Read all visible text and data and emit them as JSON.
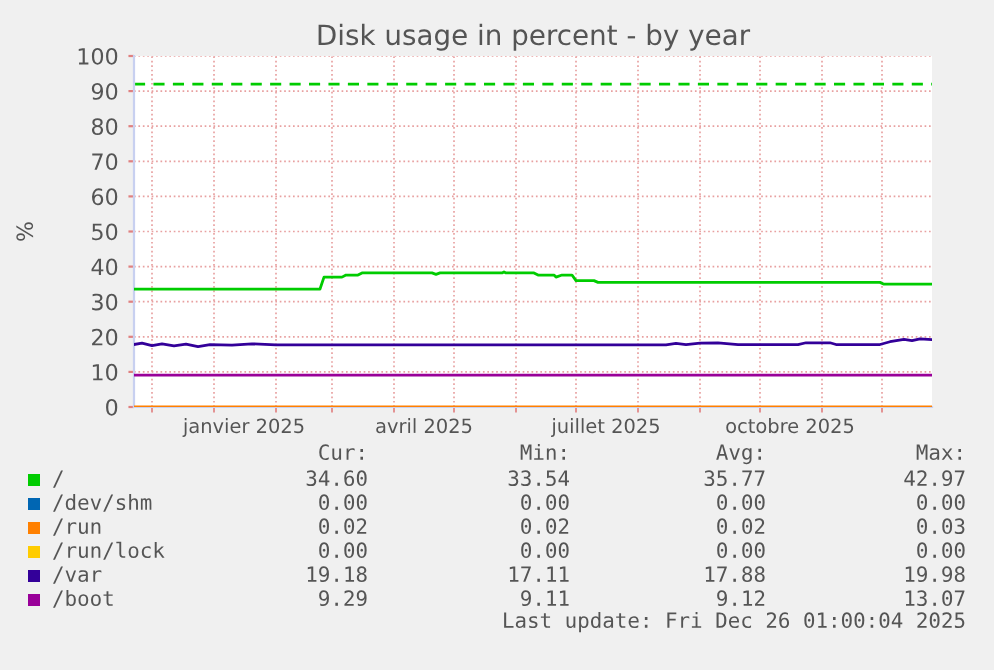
{
  "chart_data": {
    "type": "line",
    "title": "Disk usage in percent - by year",
    "ylabel": "%",
    "xlim": [
      "2024-11-22",
      "2025-12-26"
    ],
    "xticks": [
      {
        "value": "2024-12-01",
        "label": null
      },
      {
        "value": "2025-01-01",
        "label": null
      },
      {
        "value": "2025-01-16",
        "label": "janvier 2025"
      },
      {
        "value": "2025-02-01",
        "label": null
      },
      {
        "value": "2025-03-01",
        "label": null
      },
      {
        "value": "2025-04-01",
        "label": null
      },
      {
        "value": "2025-04-16",
        "label": "avril 2025"
      },
      {
        "value": "2025-05-01",
        "label": null
      },
      {
        "value": "2025-06-01",
        "label": null
      },
      {
        "value": "2025-07-01",
        "label": null
      },
      {
        "value": "2025-07-16",
        "label": "juillet 2025"
      },
      {
        "value": "2025-08-01",
        "label": null
      },
      {
        "value": "2025-09-01",
        "label": null
      },
      {
        "value": "2025-10-01",
        "label": null
      },
      {
        "value": "2025-10-16",
        "label": "octobre 2025"
      },
      {
        "value": "2025-11-01",
        "label": null
      },
      {
        "value": "2025-12-01",
        "label": null
      }
    ],
    "ylim": [
      0,
      100
    ],
    "yticks": [
      0,
      10,
      20,
      30,
      40,
      50,
      60,
      70,
      80,
      90,
      100
    ],
    "grid": true,
    "legend": "bottom",
    "marker": "none",
    "line_style": "solid",
    "series": [
      {
        "name": "/",
        "color": "#00cc00",
        "x": [
          "2024-11-22",
          "2025-02-23",
          "2025-02-25",
          "2025-03-06",
          "2025-03-08",
          "2025-03-14",
          "2025-03-16",
          "2025-04-20",
          "2025-04-22",
          "2025-04-24",
          "2025-05-25",
          "2025-05-26",
          "2025-05-27",
          "2025-06-10",
          "2025-06-12",
          "2025-06-20",
          "2025-06-21",
          "2025-06-24",
          "2025-06-29",
          "2025-07-01",
          "2025-07-10",
          "2025-07-12",
          "2025-11-30",
          "2025-12-02",
          "2025-12-26"
        ],
        "values": [
          33.6,
          33.6,
          37.0,
          37.0,
          37.6,
          37.6,
          38.2,
          38.2,
          37.8,
          38.2,
          38.2,
          38.5,
          38.2,
          38.2,
          37.6,
          37.6,
          37.0,
          37.6,
          37.6,
          36.0,
          36.0,
          35.5,
          35.5,
          35.0,
          35.0
        ]
      },
      {
        "name": "/dev/shm",
        "color": "#0066b3"
      },
      {
        "name": "/run",
        "color": "#ff8000",
        "x": [
          "2024-11-22",
          "2025-12-26"
        ],
        "values": [
          0,
          0
        ]
      },
      {
        "name": "/run/lock",
        "color": "#ffcc00"
      },
      {
        "name": "/var",
        "color": "#330099",
        "x": [
          "2024-11-22",
          "2024-11-26",
          "2024-12-01",
          "2024-12-06",
          "2024-12-12",
          "2024-12-18",
          "2024-12-24",
          "2024-12-30",
          "2025-01-10",
          "2025-01-20",
          "2025-02-01",
          "2025-08-15",
          "2025-08-20",
          "2025-08-25",
          "2025-09-01",
          "2025-09-10",
          "2025-09-20",
          "2025-10-01",
          "2025-10-20",
          "2025-10-24",
          "2025-11-05",
          "2025-11-08",
          "2025-11-30",
          "2025-12-05",
          "2025-12-12",
          "2025-12-16",
          "2025-12-20",
          "2025-12-26"
        ],
        "values": [
          17.8,
          18.2,
          17.5,
          18.0,
          17.4,
          17.9,
          17.2,
          17.8,
          17.6,
          18.0,
          17.7,
          17.7,
          18.1,
          17.8,
          18.2,
          18.3,
          17.8,
          17.8,
          17.8,
          18.3,
          18.3,
          17.8,
          17.8,
          18.6,
          19.3,
          18.9,
          19.4,
          19.2
        ]
      },
      {
        "name": "/boot",
        "color": "#990099",
        "x": [
          "2024-11-22",
          "2025-12-26"
        ],
        "values": [
          9.1,
          9.1
        ]
      }
    ],
    "ref_lines": [
      {
        "axis": "y",
        "value": 92,
        "color": "#00cc00",
        "line_style": "dashed"
      }
    ],
    "annotations": [
      "Cur:",
      "Min:",
      "Avg:",
      "Max:",
      "34.60",
      "33.54",
      "35.77",
      "42.97",
      "0.00",
      "0.00",
      "0.00",
      "0.00",
      "0.02",
      "0.02",
      "0.02",
      "0.03",
      "0.00",
      "0.00",
      "0.00",
      "0.00",
      "19.18",
      "17.11",
      "17.88",
      "19.98",
      "9.29",
      "9.11",
      "9.12",
      "13.07",
      "Last update: Fri Dec 26 01:00:04 2025"
    ]
  }
}
